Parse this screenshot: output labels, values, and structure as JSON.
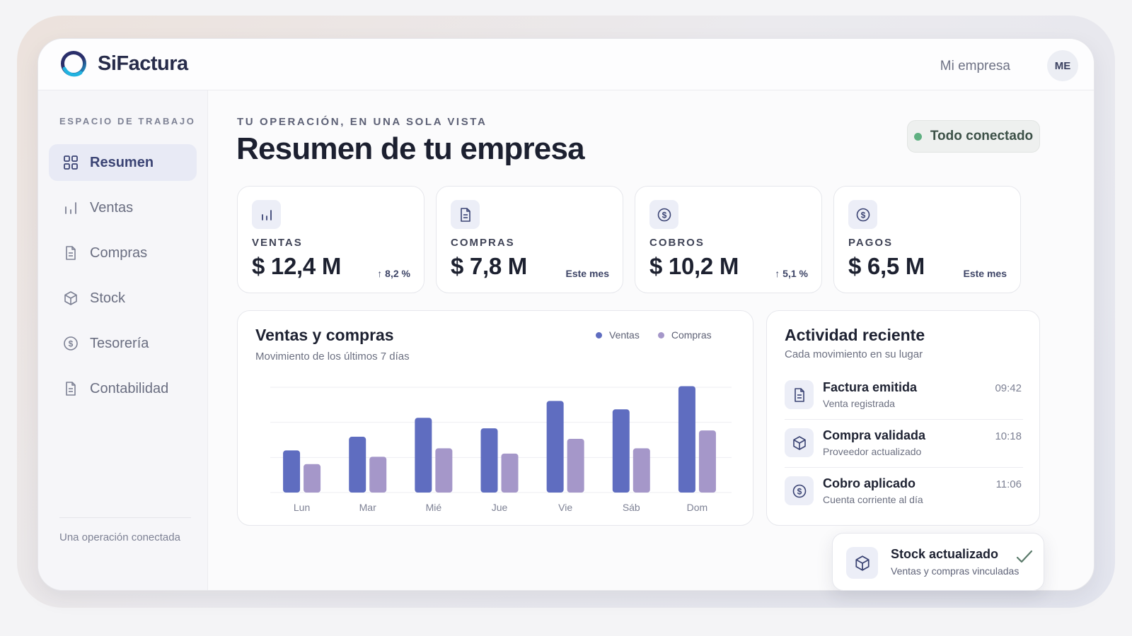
{
  "app": {
    "name": "SiFactura",
    "company": "Mi empresa",
    "avatar_initials": "ME"
  },
  "sidebar": {
    "heading": "ESPACIO DE TRABAJO",
    "items": [
      {
        "label": "Resumen",
        "icon": "grid-icon",
        "active": true
      },
      {
        "label": "Ventas",
        "icon": "bar-chart-icon"
      },
      {
        "label": "Compras",
        "icon": "document-icon"
      },
      {
        "label": "Stock",
        "icon": "box-icon"
      },
      {
        "label": "Tesorería",
        "icon": "dollar-icon"
      },
      {
        "label": "Contabilidad",
        "icon": "document-icon"
      }
    ],
    "footer": "Una operación conectada"
  },
  "main": {
    "eyebrow": "TU OPERACIÓN, EN UNA SOLA VISTA",
    "title": "Resumen de tu empresa",
    "status": "Todo conectado"
  },
  "kpis": [
    {
      "label": "VENTAS",
      "value": "$ 12,4 M",
      "note": "↑ 8,2 %",
      "icon": "bar-chart-icon"
    },
    {
      "label": "COMPRAS",
      "value": "$ 7,8 M",
      "note": "Este mes",
      "icon": "document-icon"
    },
    {
      "label": "COBROS",
      "value": "$ 10,2 M",
      "note": "↑ 5,1 %",
      "icon": "dollar-icon"
    },
    {
      "label": "PAGOS",
      "value": "$ 6,5 M",
      "note": "Este mes",
      "icon": "dollar-icon"
    }
  ],
  "chart": {
    "title": "Ventas y compras",
    "subtitle": "Movimiento de los últimos 7 días",
    "legend": [
      "Ventas",
      "Compras"
    ]
  },
  "chart_data": {
    "type": "bar",
    "categories": [
      "Lun",
      "Mar",
      "Mié",
      "Jue",
      "Vie",
      "Sáb",
      "Dom"
    ],
    "series": [
      {
        "name": "Ventas",
        "values": [
          40,
          53,
          71,
          61,
          87,
          79,
          101
        ]
      },
      {
        "name": "Compras",
        "values": [
          27,
          34,
          42,
          37,
          51,
          42,
          59
        ]
      }
    ],
    "ylim": [
      0,
      100
    ],
    "grid": true,
    "legend_position": "top-right",
    "colors": {
      "Ventas": "#5f6dc0",
      "Compras": "#a597c9"
    }
  },
  "activity": {
    "title": "Actividad reciente",
    "subtitle": "Cada movimiento en su lugar",
    "items": [
      {
        "title": "Factura emitida",
        "subtitle": "Venta registrada",
        "time": "09:42",
        "icon": "document-icon"
      },
      {
        "title": "Compra validada",
        "subtitle": "Proveedor actualizado",
        "time": "10:18",
        "icon": "box-icon"
      },
      {
        "title": "Cobro aplicado",
        "subtitle": "Cuenta corriente al día",
        "time": "11:06",
        "icon": "dollar-icon"
      }
    ]
  },
  "toast": {
    "title": "Stock actualizado",
    "subtitle": "Ventas y compras vinculadas",
    "icon": "box-icon"
  }
}
